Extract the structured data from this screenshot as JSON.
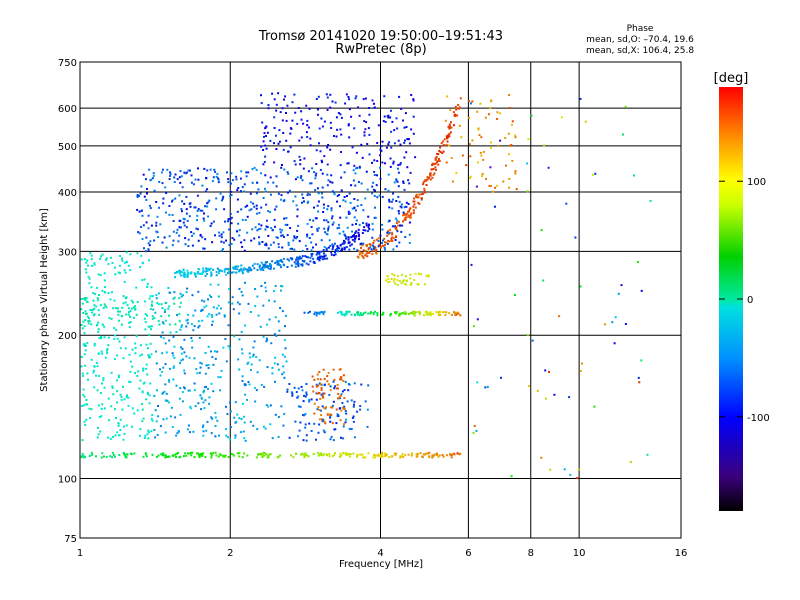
{
  "chart_data": {
    "type": "scatter",
    "title": "Tromsø 20141020 19:50:00–19:51:43",
    "subtitle": "RwPretec (8p)",
    "xlabel": "Frequency [MHz]",
    "ylabel": "Stationary phase Virtual Height [km]",
    "x_scale": "log",
    "y_scale": "log",
    "xlim": [
      1,
      16
    ],
    "ylim": [
      75,
      750
    ],
    "x_ticks": [
      1,
      2,
      4,
      6,
      8,
      10,
      16
    ],
    "x_tick_labels": [
      "1",
      "2",
      "4",
      "6",
      "8",
      "10",
      "16"
    ],
    "y_ticks": [
      75,
      100,
      200,
      300,
      400,
      500,
      600,
      750
    ],
    "y_tick_labels": [
      "75",
      "100",
      "200",
      "300",
      "400",
      "500",
      "600",
      "750"
    ],
    "grid": true,
    "colorbar": {
      "label": "[deg]",
      "range": [
        -180,
        180
      ],
      "ticks": [
        100,
        0,
        -100
      ],
      "tick_labels": [
        "100",
        "0",
        "-100"
      ]
    },
    "phase_stats": {
      "header": "Phase",
      "line_o": "mean, sd,O: –70.4, 19.6",
      "line_x": "mean, sd,X: 106.4, 25.8"
    },
    "clusters": [
      {
        "kind": "trace",
        "f": [
          1.0,
          5.8
        ],
        "h": [
          112,
          112
        ],
        "phase": [
          -5,
          145
        ],
        "n": 260,
        "spread": 0.012
      },
      {
        "kind": "trace",
        "f": [
          1.55,
          2.6
        ],
        "h": [
          270,
          285
        ],
        "phase": [
          -40,
          -70
        ],
        "n": 160,
        "spread": 0.02
      },
      {
        "kind": "trace",
        "f": [
          2.6,
          3.8
        ],
        "h": [
          285,
          340
        ],
        "phase": [
          -75,
          -115
        ],
        "n": 140,
        "spread": 0.025
      },
      {
        "kind": "trace",
        "f": [
          3.6,
          5.8
        ],
        "h": [
          300,
          630
        ],
        "phase": [
          150,
          165
        ],
        "n": 200,
        "spread": 0.035
      },
      {
        "kind": "trace",
        "f": [
          2.8,
          5.8
        ],
        "h": [
          222,
          222
        ],
        "phase": [
          -90,
          150
        ],
        "n": 120,
        "spread": 0.01
      },
      {
        "kind": "blob",
        "f": [
          1.3,
          4.6
        ],
        "h": [
          300,
          450
        ],
        "phase": [
          -60,
          -110
        ],
        "n": 620
      },
      {
        "kind": "blob",
        "f": [
          2.3,
          4.7
        ],
        "h": [
          450,
          650
        ],
        "phase": [
          -90,
          -120
        ],
        "n": 220
      },
      {
        "kind": "blob",
        "f": [
          1.0,
          1.4
        ],
        "h": [
          120,
          300
        ],
        "phase": [
          -20,
          -35
        ],
        "n": 320
      },
      {
        "kind": "blob",
        "f": [
          1.4,
          2.6
        ],
        "h": [
          120,
          260
        ],
        "phase": [
          -40,
          -75
        ],
        "n": 360
      },
      {
        "kind": "blob",
        "f": [
          2.6,
          3.8
        ],
        "h": [
          120,
          160
        ],
        "phase": [
          -60,
          -100
        ],
        "n": 120
      },
      {
        "kind": "blob",
        "f": [
          2.9,
          3.4
        ],
        "h": [
          130,
          170
        ],
        "phase": [
          135,
          160
        ],
        "n": 70
      },
      {
        "kind": "blob",
        "f": [
          4.1,
          5.0
        ],
        "h": [
          255,
          270
        ],
        "phase": [
          90,
          110
        ],
        "n": 40
      },
      {
        "kind": "blob",
        "f": [
          5.4,
          7.5
        ],
        "h": [
          400,
          640
        ],
        "phase": [
          110,
          160
        ],
        "n": 70
      },
      {
        "kind": "blob",
        "f": [
          1.0,
          1.6
        ],
        "h": [
          210,
          240
        ],
        "phase": [
          -10,
          -25
        ],
        "n": 80
      },
      {
        "kind": "scatter",
        "f": [
          6.0,
          14.0
        ],
        "h": [
          100,
          640
        ],
        "phase": [
          -140,
          170
        ],
        "n": 70
      }
    ]
  }
}
